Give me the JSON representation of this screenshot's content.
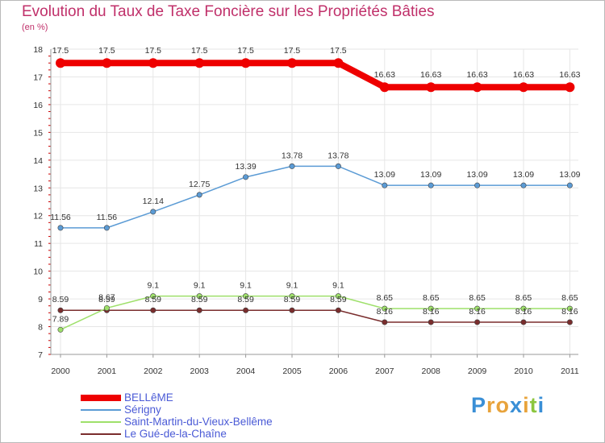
{
  "chart_data": {
    "type": "line",
    "title": "Evolution du Taux de Taxe Foncière sur les Propriétés Bâties",
    "ylabel": "(en %)",
    "xlabel": "",
    "ylim": [
      7,
      18
    ],
    "yticks": [
      "7",
      "8",
      "9",
      "10",
      "11",
      "12",
      "13",
      "14",
      "15",
      "16",
      "17",
      "18"
    ],
    "categories": [
      "2000",
      "2001",
      "2002",
      "2003",
      "2004",
      "2005",
      "2006",
      "2007",
      "2008",
      "2009",
      "2010",
      "2011"
    ],
    "series": [
      {
        "name": "BELLêME",
        "color": "#ee0000",
        "values": [
          17.5,
          17.5,
          17.5,
          17.5,
          17.5,
          17.5,
          17.5,
          16.63,
          16.63,
          16.63,
          16.63,
          16.63
        ],
        "labels": [
          "17.5",
          "17.5",
          "17.5",
          "17.5",
          "17.5",
          "17.5",
          "17.5",
          "16.63",
          "16.63",
          "16.63",
          "16.63",
          "16.63"
        ]
      },
      {
        "name": "Sérigny",
        "color": "#5b9bd5",
        "values": [
          11.56,
          11.56,
          12.14,
          12.75,
          13.39,
          13.78,
          13.78,
          13.09,
          13.09,
          13.09,
          13.09,
          13.09
        ],
        "labels": [
          "11.56",
          "11.56",
          "12.14",
          "12.75",
          "13.39",
          "13.78",
          "13.78",
          "13.09",
          "13.09",
          "13.09",
          "13.09",
          "13.09"
        ]
      },
      {
        "name": "Saint-Martin-du-Vieux-Bellême",
        "color": "#9ee06a",
        "values": [
          7.89,
          8.67,
          9.1,
          9.1,
          9.1,
          9.1,
          9.1,
          8.65,
          8.65,
          8.65,
          8.65,
          8.65
        ],
        "labels": [
          "7.89",
          "8.67",
          "9.1",
          "9.1",
          "9.1",
          "9.1",
          "9.1",
          "8.65",
          "8.65",
          "8.65",
          "8.65",
          "8.65"
        ]
      },
      {
        "name": "Le Gué-de-la-Chaîne",
        "color": "#7a2d2d",
        "values": [
          8.59,
          8.59,
          8.59,
          8.59,
          8.59,
          8.59,
          8.59,
          8.16,
          8.16,
          8.16,
          8.16,
          8.16
        ],
        "labels": [
          "8.59",
          "8.59",
          "8.59",
          "8.59",
          "8.59",
          "8.59",
          "8.59",
          "8.16",
          "8.16",
          "8.16",
          "8.16",
          "8.16"
        ]
      }
    ],
    "grid": true,
    "legend": "bottom-left"
  },
  "logo": {
    "letters": [
      "P",
      "r",
      "o",
      "x",
      "i",
      "t",
      "i"
    ],
    "colors": [
      "#3a8fd6",
      "#e8a33b",
      "#e8a33b",
      "#3a8fd6",
      "#e8a33b",
      "#8cc63f",
      "#3a8fd6"
    ]
  }
}
